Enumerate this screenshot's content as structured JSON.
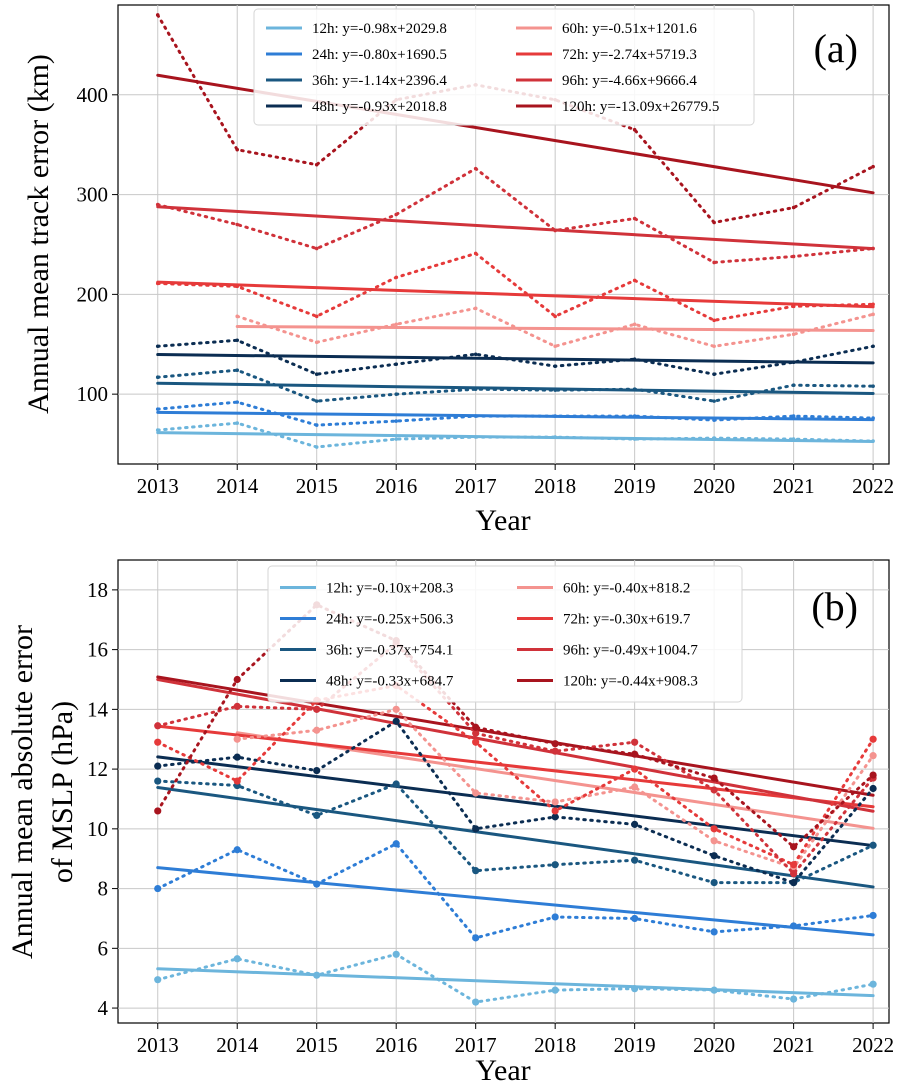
{
  "figure": {
    "panels": [
      {
        "tag": "(a)",
        "xlabel": "Year",
        "ylabel": "Annual mean track error (km)"
      },
      {
        "tag": "(b)",
        "xlabel": "Year",
        "ylabel_line1": "Annual mean absolute error",
        "ylabel_line2": "of MSLP (hPa)"
      }
    ]
  },
  "chart_data": [
    {
      "type": "line",
      "tag": "(a)",
      "xlabel": "Year",
      "ylabel": "Annual mean track error (km)",
      "x": [
        2013,
        2014,
        2015,
        2016,
        2017,
        2018,
        2019,
        2020,
        2021,
        2022
      ],
      "xlim": [
        2012.5,
        2022.2
      ],
      "ylim": [
        30,
        490
      ],
      "yticks": [
        100,
        200,
        300,
        400
      ],
      "grid": true,
      "legend_position": "top",
      "series": [
        {
          "name": "12h",
          "color": "#6cb5dc",
          "label": "12h: y=-0.98x+2029.8",
          "x": [
            2013,
            2014,
            2015,
            2016,
            2017,
            2018,
            2019,
            2020,
            2021,
            2022
          ],
          "values": [
            64,
            71,
            47,
            55,
            57,
            57,
            55,
            56,
            55,
            53
          ],
          "fit": {
            "slope": -0.98,
            "intercept": 2029.8
          }
        },
        {
          "name": "24h",
          "color": "#2e7dd6",
          "label": "24h: y=-0.80x+1690.5",
          "x": [
            2013,
            2014,
            2015,
            2016,
            2017,
            2018,
            2019,
            2020,
            2021,
            2022
          ],
          "values": [
            85,
            92,
            69,
            73,
            78,
            78,
            78,
            74,
            78,
            76
          ],
          "fit": {
            "slope": -0.8,
            "intercept": 1690.5
          }
        },
        {
          "name": "36h",
          "color": "#1a5780",
          "label": "36h: y=-1.14x+2396.4",
          "x": [
            2013,
            2014,
            2015,
            2016,
            2017,
            2018,
            2019,
            2020,
            2021,
            2022
          ],
          "values": [
            117,
            124,
            93,
            100,
            105,
            104,
            105,
            93,
            109,
            108
          ],
          "fit": {
            "slope": -1.14,
            "intercept": 2396.4
          }
        },
        {
          "name": "48h",
          "color": "#0b2d52",
          "label": "48h: y=-0.93x+2018.8",
          "x": [
            2013,
            2014,
            2015,
            2016,
            2017,
            2018,
            2019,
            2020,
            2021,
            2022
          ],
          "values": [
            148,
            154,
            120,
            130,
            140,
            128,
            135,
            120,
            132,
            148
          ],
          "fit": {
            "slope": -0.93,
            "intercept": 2018.8
          }
        },
        {
          "name": "60h",
          "color": "#f4938f",
          "label": "60h: y=-0.51x+1201.6",
          "x": [
            2014,
            2015,
            2016,
            2017,
            2018,
            2019,
            2020,
            2021,
            2022
          ],
          "values": [
            178,
            152,
            170,
            186,
            148,
            170,
            148,
            160,
            180
          ],
          "fit": {
            "slope": -0.51,
            "intercept": 1201.6
          }
        },
        {
          "name": "72h",
          "color": "#e63a3a",
          "label": "72h: y=-2.74x+5719.3",
          "x": [
            2013,
            2014,
            2015,
            2016,
            2017,
            2018,
            2019,
            2020,
            2021,
            2022
          ],
          "values": [
            211,
            208,
            178,
            217,
            241,
            178,
            214,
            174,
            188,
            190
          ],
          "fit": {
            "slope": -2.74,
            "intercept": 5719.3
          }
        },
        {
          "name": "96h",
          "color": "#d0323a",
          "label": "96h: y=-4.66x+9666.4",
          "x": [
            2013,
            2014,
            2015,
            2016,
            2017,
            2018,
            2019,
            2020,
            2021,
            2022
          ],
          "values": [
            290,
            270,
            246,
            280,
            326,
            264,
            276,
            232,
            238,
            246
          ],
          "fit": {
            "slope": -4.66,
            "intercept": 9666.4
          }
        },
        {
          "name": "120h",
          "color": "#a8141e",
          "label": "120h: y=-13.09x+26779.5",
          "x": [
            2013,
            2014,
            2015,
            2016,
            2017,
            2018,
            2019,
            2020,
            2021,
            2022
          ],
          "values": [
            480,
            345,
            330,
            395,
            410,
            395,
            365,
            272,
            287,
            328
          ],
          "fit": {
            "slope": -13.09,
            "intercept": 26779.5
          }
        }
      ]
    },
    {
      "type": "line",
      "tag": "(b)",
      "xlabel": "Year",
      "ylabel": "Annual mean absolute error of MSLP (hPa)",
      "x": [
        2013,
        2014,
        2015,
        2016,
        2017,
        2018,
        2019,
        2020,
        2021,
        2022
      ],
      "xlim": [
        2012.5,
        2022.2
      ],
      "ylim": [
        3.5,
        19.0
      ],
      "yticks": [
        4,
        6,
        8,
        10,
        12,
        14,
        16,
        18
      ],
      "grid": true,
      "legend_position": "top",
      "series": [
        {
          "name": "12h",
          "color": "#6cb5dc",
          "label": "12h: y=-0.10x+208.3",
          "x": [
            2013,
            2014,
            2015,
            2016,
            2017,
            2018,
            2019,
            2020,
            2021,
            2022
          ],
          "values": [
            4.95,
            5.65,
            5.1,
            5.8,
            4.2,
            4.6,
            4.65,
            4.6,
            4.3,
            4.8
          ],
          "fit": {
            "slope": -0.1,
            "intercept": 208.3
          }
        },
        {
          "name": "24h",
          "color": "#2e7dd6",
          "label": "24h: y=-0.25x+506.3",
          "x": [
            2013,
            2014,
            2015,
            2016,
            2017,
            2018,
            2019,
            2020,
            2021,
            2022
          ],
          "values": [
            8.0,
            9.3,
            8.15,
            9.5,
            6.35,
            7.05,
            7.0,
            6.55,
            6.75,
            7.1
          ],
          "fit": {
            "slope": -0.25,
            "intercept": 506.3
          }
        },
        {
          "name": "36h",
          "color": "#1a5780",
          "label": "36h: y=-0.37x+754.1",
          "x": [
            2013,
            2014,
            2015,
            2016,
            2017,
            2018,
            2019,
            2020,
            2021,
            2022
          ],
          "values": [
            11.6,
            11.45,
            10.45,
            11.5,
            8.6,
            8.8,
            8.95,
            8.2,
            8.2,
            9.45
          ],
          "fit": {
            "slope": -0.37,
            "intercept": 754.1
          }
        },
        {
          "name": "48h",
          "color": "#0b2d52",
          "label": "48h: y=-0.33x+684.7",
          "x": [
            2013,
            2014,
            2015,
            2016,
            2017,
            2018,
            2019,
            2020,
            2021,
            2022
          ],
          "values": [
            12.1,
            12.4,
            11.95,
            13.6,
            10.0,
            10.4,
            10.15,
            9.1,
            8.2,
            11.35
          ],
          "fit": {
            "slope": -0.33,
            "intercept": 684.7
          }
        },
        {
          "name": "60h",
          "color": "#f4938f",
          "label": "60h: y=-0.40x+818.2",
          "x": [
            2014,
            2015,
            2016,
            2017,
            2018,
            2019,
            2020,
            2021,
            2022
          ],
          "values": [
            13.0,
            13.3,
            14.0,
            11.2,
            10.9,
            11.4,
            9.6,
            8.7,
            12.45
          ],
          "fit": {
            "slope": -0.4,
            "intercept": 818.2
          }
        },
        {
          "name": "72h",
          "color": "#e63a3a",
          "label": "72h: y=-0.30x+619.7",
          "x": [
            2013,
            2014,
            2015,
            2016,
            2017,
            2018,
            2019,
            2020,
            2021,
            2022
          ],
          "values": [
            12.9,
            11.6,
            14.3,
            14.8,
            12.9,
            10.6,
            12.0,
            10.0,
            8.8,
            13.0
          ],
          "fit": {
            "slope": -0.3,
            "intercept": 619.7
          }
        },
        {
          "name": "96h",
          "color": "#d0323a",
          "label": "96h: y=-0.49x+1004.7",
          "x": [
            2013,
            2014,
            2015,
            2016,
            2017,
            2018,
            2019,
            2020,
            2021,
            2022
          ],
          "values": [
            13.45,
            14.1,
            14.0,
            16.2,
            13.2,
            12.6,
            12.9,
            11.3,
            8.5,
            11.7
          ],
          "fit": {
            "slope": -0.49,
            "intercept": 1004.7
          }
        },
        {
          "name": "120h",
          "color": "#a8141e",
          "label": "120h: y=-0.44x+908.3",
          "x": [
            2013,
            2014,
            2015,
            2016,
            2017,
            2018,
            2019,
            2020,
            2021,
            2022
          ],
          "values": [
            10.6,
            15.0,
            17.5,
            16.3,
            13.4,
            12.85,
            12.5,
            11.7,
            9.4,
            11.8
          ],
          "fit": {
            "slope": -0.44,
            "intercept": 908.3
          }
        }
      ]
    }
  ]
}
